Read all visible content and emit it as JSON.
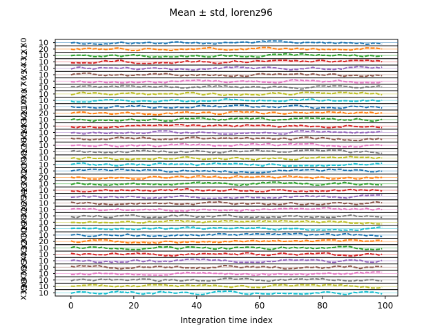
{
  "figure": {
    "title": "Mean ± std, lorenz96",
    "xlabel": "Integration time index"
  },
  "chart_data": {
    "type": "line",
    "title": "Mean ± std, lorenz96",
    "xlabel": "Integration time index",
    "x_range": [
      0,
      99
    ],
    "xlim": [
      -5,
      104
    ],
    "x_ticks": [
      "0",
      "20",
      "40",
      "60",
      "80",
      "100"
    ],
    "x_tick_values": [
      0,
      20,
      40,
      60,
      80,
      100
    ],
    "n_panels": 40,
    "panel_ylabels_prefix": "X",
    "panel_ytick_labels": [
      "10",
      "20"
    ],
    "series_colors": [
      "#1f77b4",
      "#ff7f0e",
      "#2ca02c",
      "#d62728",
      "#9467bd",
      "#8c564b",
      "#e377c2",
      "#7f7f7f",
      "#bcbd22",
      "#17becf"
    ],
    "line_style": "dashed",
    "note_values": "Each of the 40 stacked panels shows one variable (X0..X39) fluctuating around ~10 over time indices 0-99."
  }
}
